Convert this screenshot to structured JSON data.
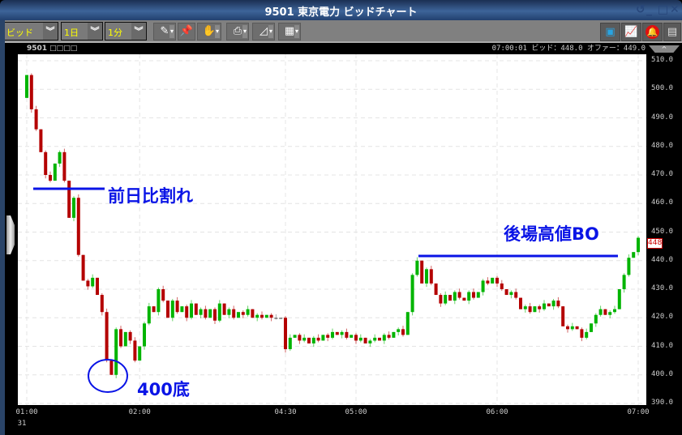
{
  "window": {
    "title": "9501 東京電力 ビッドチャート",
    "controls": [
      "restore",
      "minimize",
      "maximize",
      "close"
    ]
  },
  "toolbar": {
    "price_type": "ビッド",
    "period": "1日",
    "interval": "1分",
    "tools": [
      "pen-icon",
      "pin-icon",
      "hand-icon",
      "print-icon",
      "chart-type-icon",
      "grid-icon"
    ],
    "right_tools": [
      "board-icon",
      "chart-icon",
      "alert-bell-icon",
      "news-icon"
    ]
  },
  "info": {
    "symbol": "9501 □□□□",
    "quote": "07:00:01  ビッド：448.0  オファー：449.0"
  },
  "price_tag": "448",
  "colors": {
    "up": "#00b400",
    "down": "#b40000",
    "annotation": "#0a14e6"
  },
  "annotations": {
    "prev_day_break": "前日比割れ",
    "bottom": "400底",
    "afternoon_high_bo": "後場高値BO"
  },
  "chart_data": {
    "type": "candlestick",
    "ylim": [
      390,
      510
    ],
    "y_ticks": [
      "510.0",
      "500.0",
      "490.0",
      "480.0",
      "470.0",
      "460.0",
      "450.0",
      "440.0",
      "430.0",
      "420.0",
      "410.0",
      "400.0",
      "390.0"
    ],
    "x_ticks": [
      {
        "label": "01:00",
        "index": 0,
        "sub": "31"
      },
      {
        "label": "02:00",
        "index": 24
      },
      {
        "label": "04:30",
        "index": 55
      },
      {
        "label": "05:00",
        "index": 70
      },
      {
        "label": "06:00",
        "index": 100
      },
      {
        "label": "07:00",
        "index": 130
      }
    ],
    "first_open": 497,
    "closes": [
      505,
      493,
      486,
      478,
      470,
      468,
      474,
      478,
      468,
      455,
      462,
      442,
      433,
      431,
      434,
      428,
      422,
      405,
      400,
      416,
      410,
      415,
      412,
      405,
      410,
      418,
      424,
      422,
      430,
      426,
      420,
      426,
      422,
      424,
      420,
      425,
      421,
      423,
      420,
      423,
      419,
      425,
      421,
      423,
      420,
      422,
      421,
      423,
      420,
      421,
      420,
      421,
      420,
      420,
      420,
      409,
      413,
      414,
      412,
      413,
      411,
      413,
      412,
      414,
      413,
      415,
      414,
      415,
      413,
      414,
      412,
      413,
      411,
      412,
      413,
      412,
      414,
      413,
      415,
      416,
      414,
      422,
      435,
      440,
      432,
      437,
      432,
      428,
      425,
      428,
      426,
      429,
      427,
      426,
      429,
      427,
      429,
      433,
      432,
      434,
      432,
      430,
      428,
      429,
      427,
      423,
      424,
      422,
      424,
      423,
      425,
      424,
      426,
      424,
      417,
      416,
      417,
      416,
      413,
      415,
      418,
      421,
      423,
      421,
      422,
      423,
      430,
      435,
      441,
      443,
      448
    ],
    "last": 448
  }
}
